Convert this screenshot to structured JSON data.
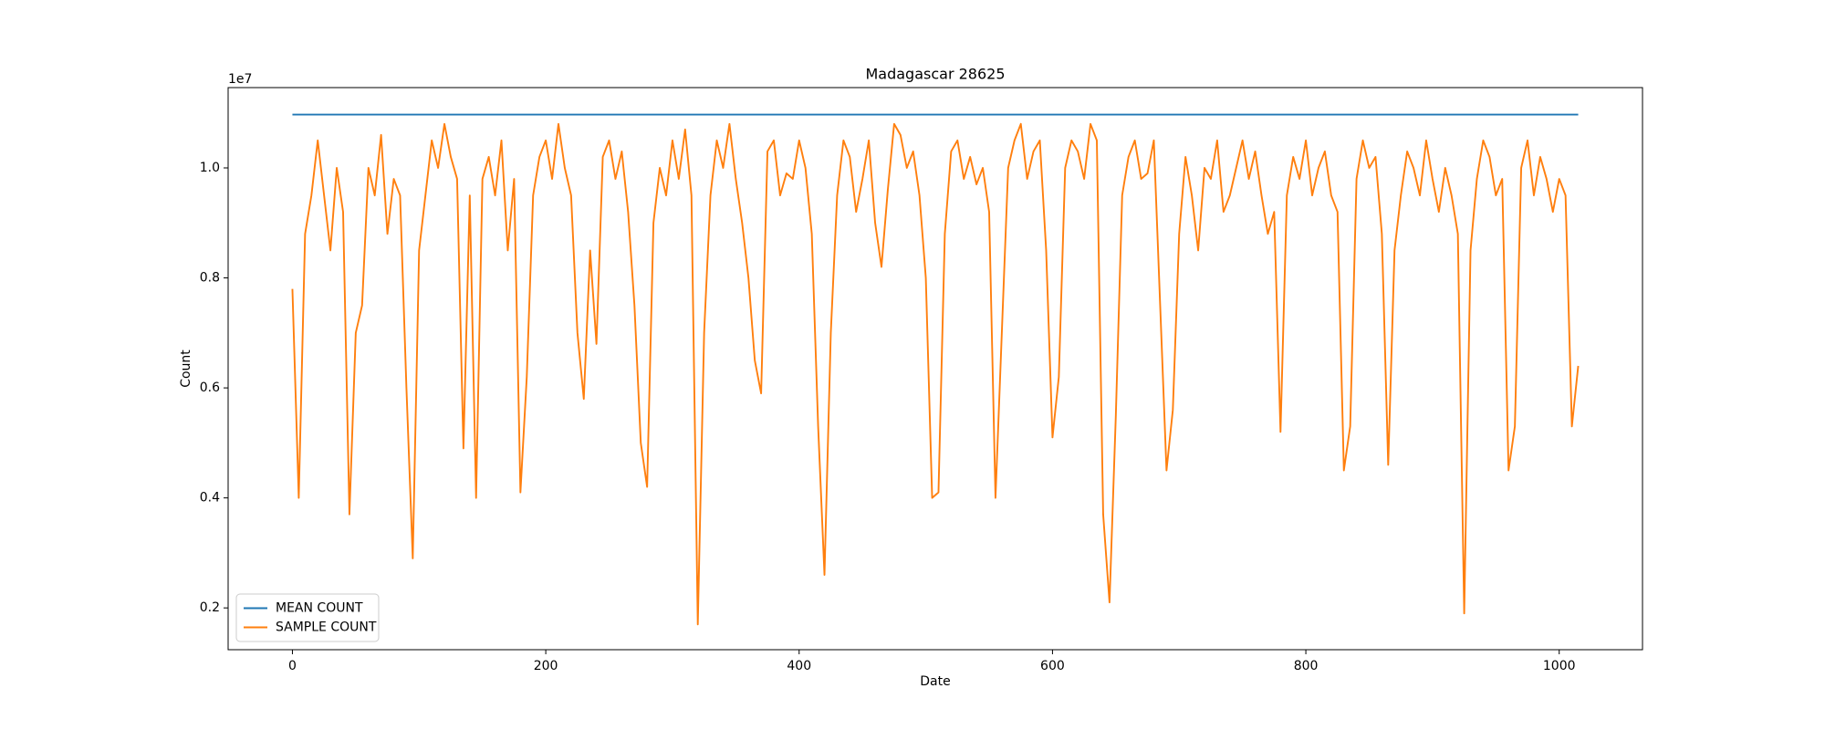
{
  "chart_data": {
    "type": "line",
    "title": "Madagascar 28625",
    "xlabel": "Date",
    "ylabel": "Count",
    "y_offset_label": "1e7",
    "xlim": [
      -50.75,
      1065.75
    ],
    "ylim": [
      0.124,
      1.146
    ],
    "xticks": [
      0,
      200,
      400,
      600,
      800,
      1000
    ],
    "yticks": [
      0.2,
      0.4,
      0.6,
      0.8,
      {
        "value": 1,
        "label": "1.0"
      }
    ],
    "grid": false,
    "legend": "lower left",
    "series": [
      {
        "name": "MEAN COUNT",
        "color": "#1f77b4",
        "x": [
          0,
          1015
        ],
        "values": [
          1.097,
          1.097
        ]
      },
      {
        "name": "SAMPLE COUNT",
        "color": "#ff7f0e",
        "x": [
          0,
          5,
          10,
          15,
          20,
          25,
          30,
          35,
          40,
          45,
          50,
          55,
          60,
          65,
          70,
          75,
          80,
          85,
          90,
          95,
          100,
          105,
          110,
          115,
          120,
          125,
          130,
          135,
          140,
          145,
          150,
          155,
          160,
          165,
          170,
          175,
          180,
          185,
          190,
          195,
          200,
          205,
          210,
          215,
          220,
          225,
          230,
          235,
          240,
          245,
          250,
          255,
          260,
          265,
          270,
          275,
          280,
          285,
          290,
          295,
          300,
          305,
          310,
          315,
          320,
          325,
          330,
          335,
          340,
          345,
          350,
          355,
          360,
          365,
          370,
          375,
          380,
          385,
          390,
          395,
          400,
          405,
          410,
          415,
          420,
          425,
          430,
          435,
          440,
          445,
          450,
          455,
          460,
          465,
          470,
          475,
          480,
          485,
          490,
          495,
          500,
          505,
          510,
          515,
          520,
          525,
          530,
          535,
          540,
          545,
          550,
          555,
          560,
          565,
          570,
          575,
          580,
          585,
          590,
          595,
          600,
          605,
          610,
          615,
          620,
          625,
          630,
          635,
          640,
          645,
          650,
          655,
          660,
          665,
          670,
          675,
          680,
          685,
          690,
          695,
          700,
          705,
          710,
          715,
          720,
          725,
          730,
          735,
          740,
          745,
          750,
          755,
          760,
          765,
          770,
          775,
          780,
          785,
          790,
          795,
          800,
          805,
          810,
          815,
          820,
          825,
          830,
          835,
          840,
          845,
          850,
          855,
          860,
          865,
          870,
          875,
          880,
          885,
          890,
          895,
          900,
          905,
          910,
          915,
          920,
          925,
          930,
          935,
          940,
          945,
          950,
          955,
          960,
          965,
          970,
          975,
          980,
          985,
          990,
          995,
          1000,
          1005,
          1010,
          1015
        ],
        "values": [
          0.78,
          0.4,
          0.88,
          0.95,
          1.05,
          0.95,
          0.85,
          1.0,
          0.92,
          0.37,
          0.7,
          0.75,
          1.0,
          0.95,
          1.06,
          0.88,
          0.98,
          0.95,
          0.6,
          0.29,
          0.85,
          0.95,
          1.05,
          1.0,
          1.08,
          1.02,
          0.98,
          0.49,
          0.95,
          0.4,
          0.98,
          1.02,
          0.95,
          1.05,
          0.85,
          0.98,
          0.41,
          0.62,
          0.95,
          1.02,
          1.05,
          0.98,
          1.08,
          1.0,
          0.95,
          0.7,
          0.58,
          0.85,
          0.68,
          1.02,
          1.05,
          0.98,
          1.03,
          0.92,
          0.75,
          0.5,
          0.42,
          0.9,
          1.0,
          0.95,
          1.05,
          0.98,
          1.07,
          0.95,
          0.17,
          0.7,
          0.95,
          1.05,
          1.0,
          1.08,
          0.98,
          0.9,
          0.8,
          0.65,
          0.59,
          1.03,
          1.05,
          0.95,
          0.99,
          0.98,
          1.05,
          1.0,
          0.88,
          0.53,
          0.26,
          0.7,
          0.95,
          1.05,
          1.02,
          0.92,
          0.98,
          1.05,
          0.9,
          0.82,
          0.96,
          1.08,
          1.06,
          1.0,
          1.03,
          0.95,
          0.8,
          0.4,
          0.41,
          0.88,
          1.03,
          1.05,
          0.98,
          1.02,
          0.97,
          1.0,
          0.92,
          0.4,
          0.7,
          1.0,
          1.05,
          1.08,
          0.98,
          1.03,
          1.05,
          0.85,
          0.51,
          0.62,
          1.0,
          1.05,
          1.03,
          0.98,
          1.08,
          1.05,
          0.37,
          0.21,
          0.55,
          0.95,
          1.02,
          1.05,
          0.98,
          0.99,
          1.05,
          0.75,
          0.45,
          0.56,
          0.88,
          1.02,
          0.95,
          0.85,
          1.0,
          0.98,
          1.05,
          0.92,
          0.95,
          1.0,
          1.05,
          0.98,
          1.03,
          0.95,
          0.88,
          0.92,
          0.52,
          0.95,
          1.02,
          0.98,
          1.05,
          0.95,
          1.0,
          1.03,
          0.95,
          0.92,
          0.45,
          0.53,
          0.98,
          1.05,
          1.0,
          1.02,
          0.88,
          0.46,
          0.85,
          0.95,
          1.03,
          1.0,
          0.95,
          1.05,
          0.98,
          0.92,
          1.0,
          0.95,
          0.88,
          0.19,
          0.85,
          0.98,
          1.05,
          1.02,
          0.95,
          0.98,
          0.45,
          0.53,
          1.0,
          1.05,
          0.95,
          1.02,
          0.98,
          0.92,
          0.98,
          0.95,
          0.53,
          0.64
        ]
      }
    ]
  }
}
